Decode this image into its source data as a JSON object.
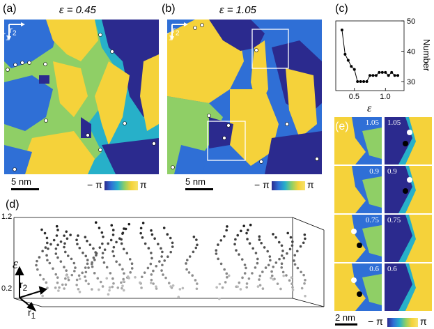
{
  "panels": {
    "a": {
      "label": "(a)",
      "epsilon": "ε = 0.45",
      "r1": "r",
      "r1_sub": "1",
      "r2": "r",
      "r2_sub": "2",
      "scalebar": "5 nm"
    },
    "b": {
      "label": "(b)",
      "epsilon": "ε = 1.05",
      "r1": "r",
      "r1_sub": "1",
      "r2": "r",
      "r2_sub": "2",
      "scalebar": "5 nm"
    },
    "c": {
      "label": "(c)"
    },
    "d": {
      "label": "(d)",
      "epsilon_axis": "ε",
      "z_top": "1.2",
      "z_bottom": "0.2",
      "r1": "r",
      "r1_sub": "1",
      "r2": "r",
      "r2_sub": "2"
    },
    "e": {
      "label": "(e)",
      "scalebar": "2 nm",
      "left_values": [
        "1.05",
        "0.9",
        "0.75",
        "0.6"
      ],
      "right_values": [
        "1.05",
        "0.9",
        "0.75",
        "0.6"
      ]
    }
  },
  "colorbar": {
    "min_label": "− π",
    "max_label": "π"
  },
  "colors": {
    "dark_blue": "#2b2a8e",
    "blue": "#2f6fd6",
    "cyan": "#27b0c9",
    "green": "#8fcf66",
    "yellow": "#f5d23a"
  },
  "chart_data": {
    "type": "line",
    "panel": "(c)",
    "xlabel": "ε",
    "ylabel": "Number",
    "x_ticks": [
      "0.5",
      "1.0"
    ],
    "y_ticks": [
      "30",
      "40",
      "50"
    ],
    "xlim": [
      0.2,
      1.3
    ],
    "ylim": [
      27,
      50
    ],
    "x": [
      0.3,
      0.35,
      0.4,
      0.45,
      0.5,
      0.55,
      0.6,
      0.65,
      0.7,
      0.75,
      0.8,
      0.85,
      0.9,
      0.95,
      1.0,
      1.05,
      1.1,
      1.15,
      1.2
    ],
    "values": [
      47,
      39,
      37,
      35,
      34,
      30,
      30,
      30,
      30,
      32,
      32,
      32,
      33,
      33,
      33,
      32,
      33,
      32,
      32
    ]
  }
}
